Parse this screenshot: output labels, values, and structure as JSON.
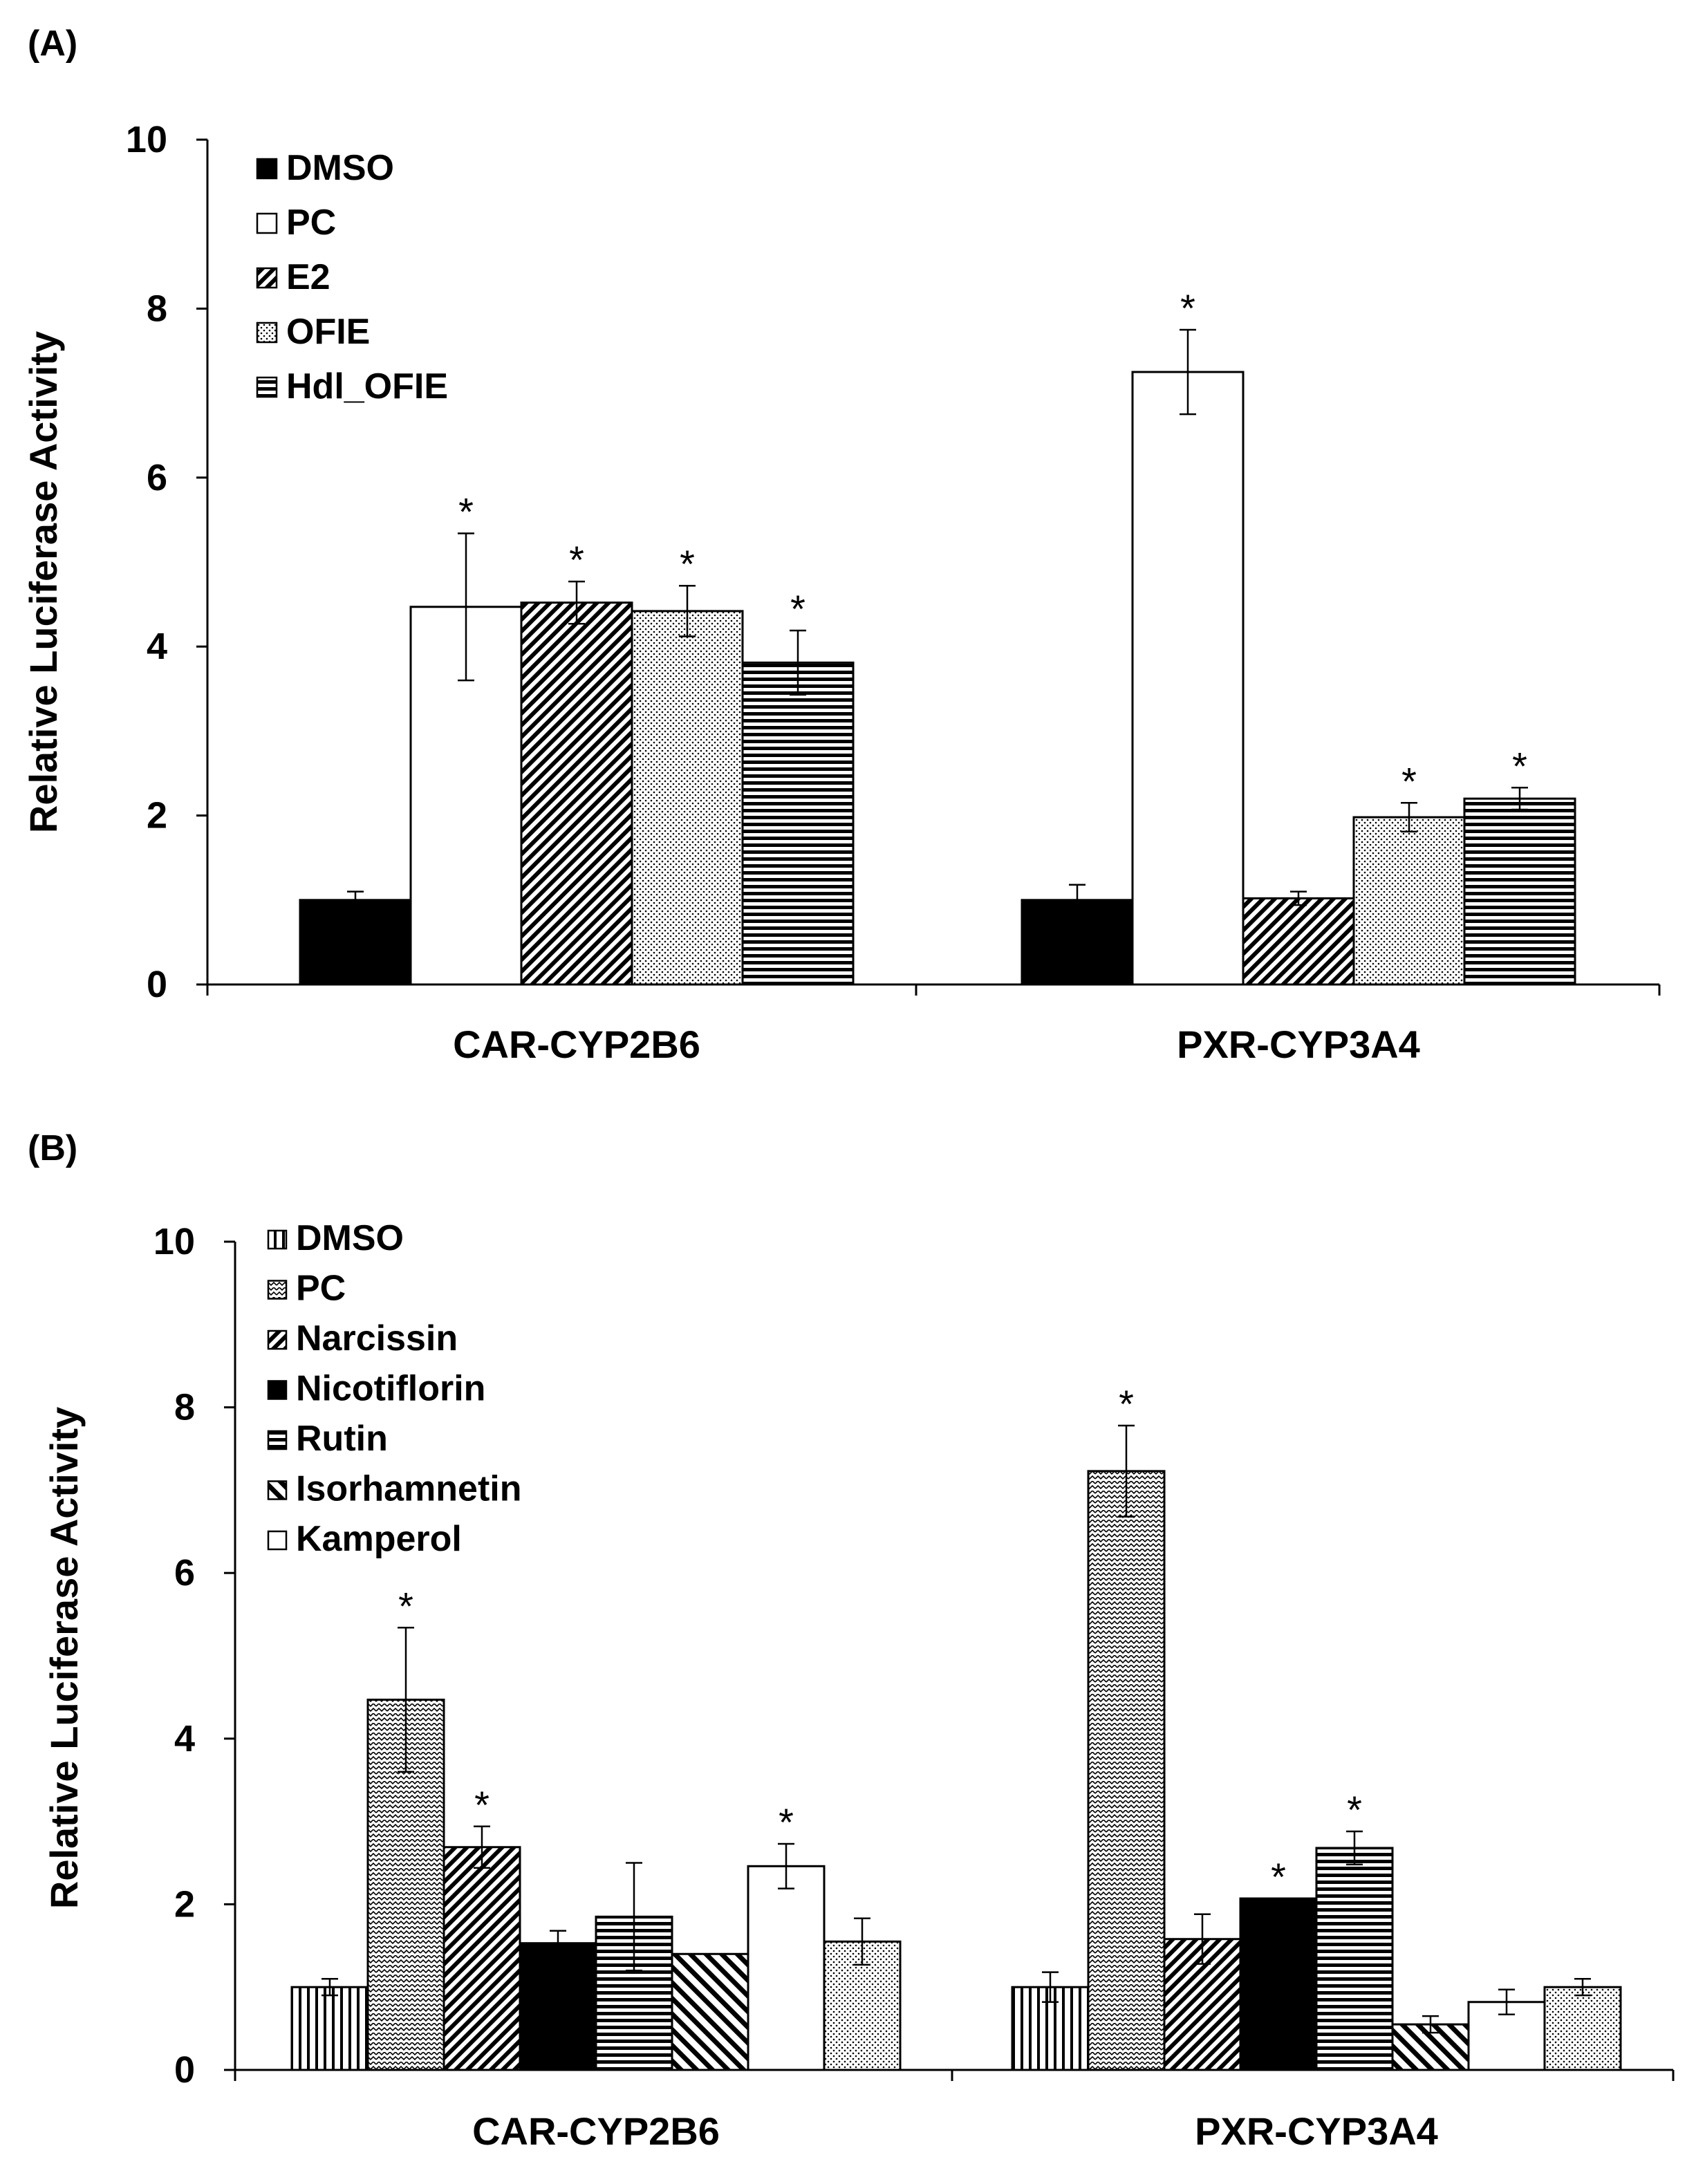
{
  "figure_title": "",
  "chart_data": [
    {
      "type": "bar",
      "panel_label": "(A)",
      "ylabel": "Relative Luciferase Activity",
      "xlabel": "",
      "ylim": [
        0,
        10
      ],
      "yticks": [
        0,
        2,
        4,
        6,
        8,
        10
      ],
      "grid": false,
      "legend_position": "top-left",
      "categories": [
        "CAR-CYP2B6",
        "PXR-CYP3A4"
      ],
      "significance_marker": "*",
      "series": [
        {
          "name": "DMSO",
          "pattern": "solid-black",
          "values": [
            1.0,
            1.0
          ],
          "errors": [
            0.1,
            0.18
          ],
          "significant": [
            false,
            false
          ]
        },
        {
          "name": "PC",
          "pattern": "white",
          "values": [
            4.47,
            7.25
          ],
          "errors": [
            0.87,
            0.5
          ],
          "significant": [
            true,
            true
          ]
        },
        {
          "name": "E2",
          "pattern": "diag-dense",
          "values": [
            4.52,
            1.02
          ],
          "errors": [
            0.25,
            0.08
          ],
          "significant": [
            true,
            false
          ]
        },
        {
          "name": "OFIE",
          "pattern": "dots",
          "values": [
            4.42,
            1.98
          ],
          "errors": [
            0.3,
            0.17
          ],
          "significant": [
            true,
            true
          ]
        },
        {
          "name": "Hdl_OFIE",
          "pattern": "horiz-dense",
          "values": [
            3.81,
            2.2
          ],
          "errors": [
            0.38,
            0.13
          ],
          "significant": [
            true,
            true
          ]
        }
      ]
    },
    {
      "type": "bar",
      "panel_label": "(B)",
      "ylabel": "Relative Luciferase Activity",
      "xlabel": "",
      "ylim": [
        0,
        10
      ],
      "yticks": [
        0,
        2,
        4,
        6,
        8,
        10
      ],
      "grid": false,
      "legend_position": "top-left",
      "categories": [
        "CAR-CYP2B6",
        "PXR-CYP3A4"
      ],
      "significance_marker": "*",
      "series": [
        {
          "name": "DMSO",
          "pattern": "vert-lines",
          "values": [
            1.0,
            1.0
          ],
          "errors": [
            0.1,
            0.18
          ],
          "significant": [
            false,
            false
          ]
        },
        {
          "name": "PC",
          "pattern": "zigzag",
          "values": [
            4.47,
            7.23
          ],
          "errors": [
            0.87,
            0.55
          ],
          "significant": [
            true,
            true
          ]
        },
        {
          "name": "Narcissin",
          "pattern": "diag-dense",
          "values": [
            2.69,
            1.58
          ],
          "errors": [
            0.25,
            0.3
          ],
          "significant": [
            true,
            false
          ]
        },
        {
          "name": "Nicotiflorin",
          "pattern": "solid-black",
          "values": [
            1.53,
            2.07
          ],
          "errors": [
            0.15,
            0.0
          ],
          "significant": [
            false,
            true
          ]
        },
        {
          "name": "Rutin",
          "pattern": "horiz-dense",
          "values": [
            1.85,
            2.68
          ],
          "errors": [
            0.65,
            0.2
          ],
          "significant": [
            false,
            true
          ]
        },
        {
          "name": "Isorhamnetin",
          "pattern": "diag-wide",
          "values": [
            1.4,
            0.55
          ],
          "errors": [
            0.0,
            0.1
          ],
          "significant": [
            false,
            false
          ]
        },
        {
          "name": "Kamperol",
          "pattern": "white",
          "values": [
            2.46,
            0.82
          ],
          "errors": [
            0.27,
            0.15
          ],
          "significant": [
            true,
            false
          ]
        },
        {
          "name": "",
          "pattern": "dots",
          "values": [
            1.55,
            1.0
          ],
          "errors": [
            0.28,
            0.1
          ],
          "significant": [
            false,
            false
          ]
        }
      ]
    }
  ]
}
